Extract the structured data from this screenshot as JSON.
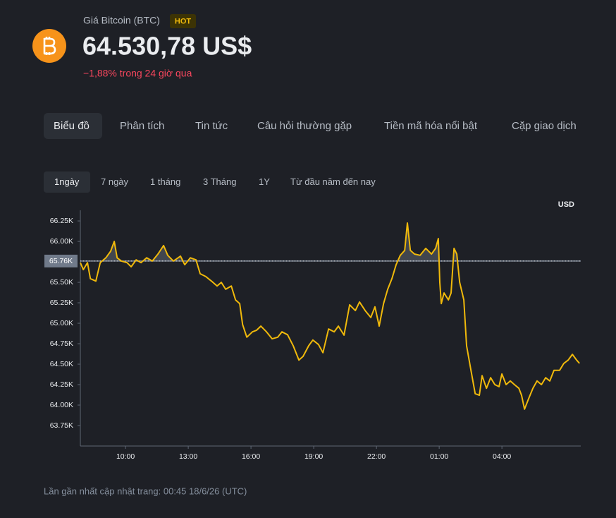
{
  "header": {
    "name": "Giá Bitcoin (BTC)",
    "badge": "HOT",
    "price": "64.530,78 US$",
    "change": "−1,88% trong 24 giờ qua"
  },
  "tabs": [
    "Biểu đồ",
    "Phân tích",
    "Tin tức",
    "Câu hỏi thường gặp",
    "Tiền mã hóa nổi bật",
    "Cặp giao dịch"
  ],
  "ranges": [
    "1ngày",
    "7 ngày",
    "1 tháng",
    "3 Tháng",
    "1Y",
    "Từ đầu năm đến nay"
  ],
  "chart_data": {
    "type": "line",
    "unit": "USD",
    "reference": {
      "value": 65760,
      "label": "65.76K"
    },
    "xlim": [
      7.84,
      31.77
    ],
    "ylim": [
      63500,
      66380
    ],
    "xticks": [
      {
        "value": 10,
        "label": "10:00"
      },
      {
        "value": 13,
        "label": "13:00"
      },
      {
        "value": 16,
        "label": "16:00"
      },
      {
        "value": 19,
        "label": "19:00"
      },
      {
        "value": 22,
        "label": "22:00"
      },
      {
        "value": 25,
        "label": "01:00"
      },
      {
        "value": 28,
        "label": "04:00"
      }
    ],
    "yticks": [
      {
        "value": 63750,
        "label": "63.75K"
      },
      {
        "value": 64000,
        "label": "64.00K"
      },
      {
        "value": 64250,
        "label": "64.25K"
      },
      {
        "value": 64500,
        "label": "64.50K"
      },
      {
        "value": 64750,
        "label": "64.75K"
      },
      {
        "value": 65000,
        "label": "65.00K"
      },
      {
        "value": 65250,
        "label": "65.25K"
      },
      {
        "value": 65500,
        "label": "65.50K"
      },
      {
        "value": 66000,
        "label": "66.00K"
      },
      {
        "value": 66250,
        "label": "66.25K"
      }
    ],
    "x": [
      7.84,
      7.98,
      8.18,
      8.32,
      8.58,
      8.79,
      9.06,
      9.29,
      9.46,
      9.6,
      9.8,
      10.07,
      10.27,
      10.51,
      10.74,
      11.01,
      11.28,
      11.55,
      11.82,
      12.02,
      12.29,
      12.63,
      12.83,
      13.1,
      13.37,
      13.57,
      13.84,
      14.11,
      14.38,
      14.58,
      14.79,
      15.06,
      15.26,
      15.46,
      15.6,
      15.8,
      16.07,
      16.27,
      16.47,
      16.74,
      17.01,
      17.28,
      17.48,
      17.75,
      18.02,
      18.29,
      18.49,
      18.76,
      18.96,
      19.23,
      19.44,
      19.71,
      19.98,
      20.18,
      20.45,
      20.72,
      20.99,
      21.19,
      21.46,
      21.73,
      21.93,
      22.13,
      22.34,
      22.54,
      22.74,
      22.94,
      23.14,
      23.35,
      23.48,
      23.62,
      23.82,
      24.09,
      24.36,
      24.63,
      24.83,
      24.96,
      25.03,
      25.1,
      25.23,
      25.44,
      25.57,
      25.71,
      25.84,
      25.98,
      26.18,
      26.31,
      26.52,
      26.72,
      26.92,
      27.05,
      27.26,
      27.46,
      27.66,
      27.86,
      28.0,
      28.2,
      28.4,
      28.6,
      28.81,
      28.94,
      29.08,
      29.28,
      29.48,
      29.68,
      29.89,
      30.09,
      30.29,
      30.49,
      30.76,
      30.96,
      31.17,
      31.37,
      31.57,
      31.71
    ],
    "series": [
      {
        "color": "#f0b90b",
        "values": [
          65740,
          65655,
          65740,
          65545,
          65515,
          65740,
          65800,
          65880,
          66000,
          65800,
          65760,
          65740,
          65690,
          65775,
          65740,
          65800,
          65760,
          65845,
          65950,
          65830,
          65760,
          65820,
          65715,
          65800,
          65775,
          65605,
          65570,
          65515,
          65455,
          65500,
          65415,
          65455,
          65285,
          65240,
          64985,
          64830,
          64895,
          64915,
          64965,
          64895,
          64810,
          64830,
          64895,
          64860,
          64725,
          64550,
          64595,
          64725,
          64795,
          64740,
          64640,
          64930,
          64895,
          64965,
          64855,
          65225,
          65155,
          65260,
          65155,
          65070,
          65200,
          64965,
          65240,
          65415,
          65545,
          65715,
          65830,
          65890,
          66225,
          65890,
          65845,
          65830,
          65915,
          65845,
          65915,
          66035,
          65500,
          65240,
          65370,
          65285,
          65370,
          65915,
          65845,
          65500,
          65285,
          64725,
          64425,
          64140,
          64120,
          64360,
          64205,
          64335,
          64250,
          64225,
          64380,
          64250,
          64295,
          64250,
          64205,
          64120,
          63950,
          64080,
          64205,
          64295,
          64250,
          64335,
          64295,
          64425,
          64425,
          64510,
          64550,
          64620,
          64550,
          64510
        ]
      }
    ]
  },
  "footer": "Lần gần nhất cập nhật trang: 00:45 18/6/26 (UTC)"
}
